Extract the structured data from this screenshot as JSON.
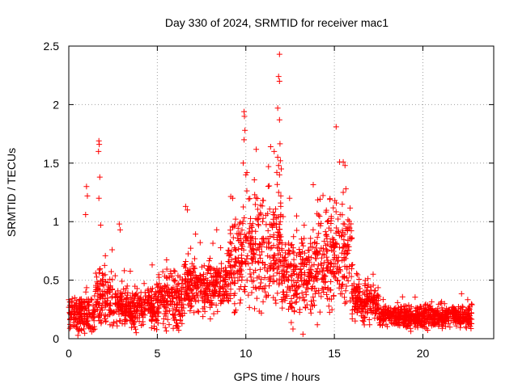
{
  "chart_data": {
    "type": "scatter",
    "title": "Day 330 of 2024, SRMTID for receiver mac1",
    "xlabel": "GPS time / hours",
    "ylabel": "SRMTID / TECUs",
    "xlim": [
      0,
      24
    ],
    "ylim": [
      0,
      2.5
    ],
    "x_ticks": [
      0,
      5,
      10,
      15,
      20
    ],
    "y_ticks": [
      0,
      0.5,
      1,
      1.5,
      2,
      2.5
    ],
    "x_tick_labels": [
      "0",
      "5",
      "10",
      "15",
      "20"
    ],
    "y_tick_labels": [
      "0",
      "0.5",
      "1",
      "1.5",
      "2",
      "2.5"
    ],
    "grid": true,
    "marker": "+",
    "series": [
      {
        "name": "mac1",
        "color": "#ff0000",
        "segments": [
          {
            "x_start": 0.0,
            "x_end": 1.5,
            "median": 0.22,
            "spread": 0.12
          },
          {
            "x_start": 1.5,
            "x_end": 2.5,
            "median": 0.35,
            "spread": 0.2
          },
          {
            "x_start": 2.5,
            "x_end": 5.0,
            "median": 0.27,
            "spread": 0.13
          },
          {
            "x_start": 5.0,
            "x_end": 6.5,
            "median": 0.32,
            "spread": 0.17
          },
          {
            "x_start": 6.5,
            "x_end": 9.0,
            "median": 0.45,
            "spread": 0.17
          },
          {
            "x_start": 9.0,
            "x_end": 10.0,
            "median": 0.65,
            "spread": 0.3
          },
          {
            "x_start": 10.0,
            "x_end": 12.0,
            "median": 0.8,
            "spread": 0.38
          },
          {
            "x_start": 12.0,
            "x_end": 14.0,
            "median": 0.55,
            "spread": 0.3
          },
          {
            "x_start": 14.0,
            "x_end": 16.0,
            "median": 0.7,
            "spread": 0.33
          },
          {
            "x_start": 16.0,
            "x_end": 17.5,
            "median": 0.32,
            "spread": 0.12
          },
          {
            "x_start": 17.5,
            "x_end": 22.8,
            "median": 0.19,
            "spread": 0.07
          }
        ],
        "peaks": [
          {
            "x": 1.0,
            "y": 1.3
          },
          {
            "x": 1.05,
            "y": 1.22
          },
          {
            "x": 0.95,
            "y": 1.06
          },
          {
            "x": 1.7,
            "y": 1.69
          },
          {
            "x": 1.72,
            "y": 1.66
          },
          {
            "x": 1.68,
            "y": 1.6
          },
          {
            "x": 1.75,
            "y": 1.38
          },
          {
            "x": 1.7,
            "y": 1.2
          },
          {
            "x": 1.8,
            "y": 0.97
          },
          {
            "x": 2.85,
            "y": 0.98
          },
          {
            "x": 2.9,
            "y": 0.93
          },
          {
            "x": 6.6,
            "y": 1.13
          },
          {
            "x": 6.7,
            "y": 1.1
          },
          {
            "x": 9.9,
            "y": 1.94
          },
          {
            "x": 9.92,
            "y": 1.9
          },
          {
            "x": 9.95,
            "y": 1.78
          },
          {
            "x": 9.9,
            "y": 1.7
          },
          {
            "x": 9.85,
            "y": 1.5
          },
          {
            "x": 10.0,
            "y": 1.4
          },
          {
            "x": 11.4,
            "y": 1.64
          },
          {
            "x": 11.6,
            "y": 1.6
          },
          {
            "x": 11.9,
            "y": 2.43
          },
          {
            "x": 11.85,
            "y": 2.24
          },
          {
            "x": 11.9,
            "y": 2.2
          },
          {
            "x": 11.8,
            "y": 1.97
          },
          {
            "x": 11.9,
            "y": 1.87
          },
          {
            "x": 11.8,
            "y": 1.55
          },
          {
            "x": 11.95,
            "y": 1.52
          },
          {
            "x": 11.85,
            "y": 1.48
          },
          {
            "x": 12.0,
            "y": 1.45
          },
          {
            "x": 11.75,
            "y": 1.42
          },
          {
            "x": 11.9,
            "y": 1.4
          },
          {
            "x": 15.1,
            "y": 1.81
          },
          {
            "x": 15.5,
            "y": 1.51
          },
          {
            "x": 15.6,
            "y": 1.48
          },
          {
            "x": 15.65,
            "y": 1.28
          },
          {
            "x": 15.5,
            "y": 1.25
          }
        ]
      }
    ]
  }
}
